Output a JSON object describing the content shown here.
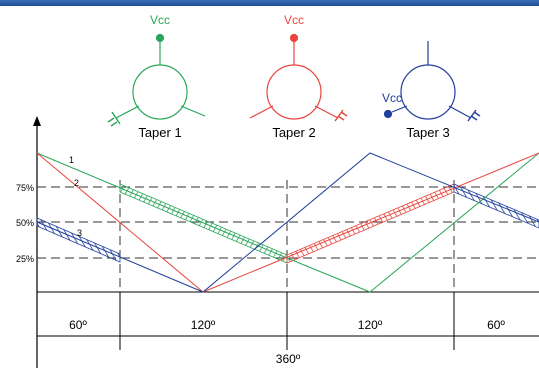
{
  "colors": {
    "accent_bar": "#2a5ea8",
    "green": "#2aa65a",
    "red": "#e8453c",
    "blue": "#1f3f9a",
    "axis": "#000000",
    "grid": "#333333"
  },
  "pots": [
    {
      "name": "Taper 1",
      "supply": "Vcc",
      "color": "green"
    },
    {
      "name": "Taper 2",
      "supply": "Vcc",
      "color": "red"
    },
    {
      "name": "Taper 3",
      "supply": "Vcc",
      "color": "blue"
    }
  ],
  "y_levels": [
    "75%",
    "50%",
    "25%"
  ],
  "curve_labels": [
    "1",
    "2",
    "3"
  ],
  "segments": [
    "60º",
    "120º",
    "120º",
    "60º"
  ],
  "total": "360º"
}
